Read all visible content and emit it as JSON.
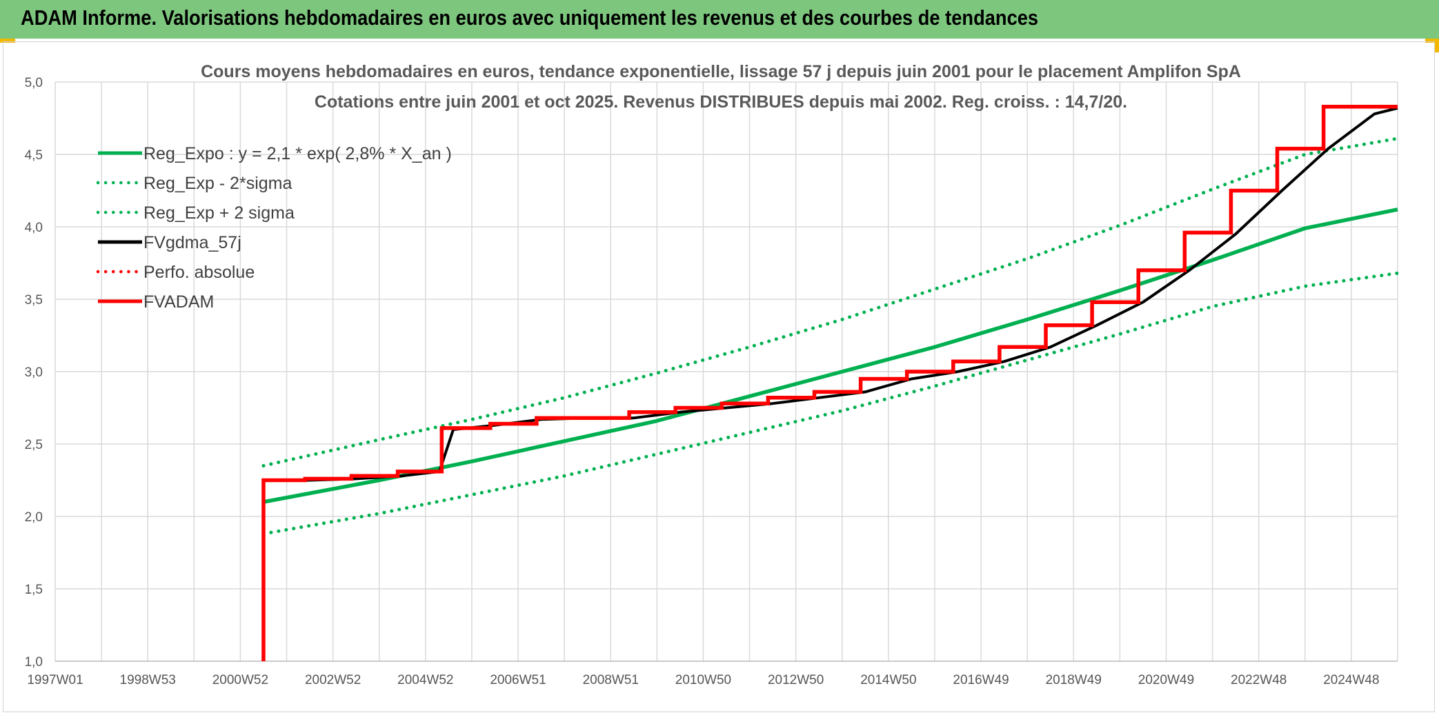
{
  "banner": {
    "title": "ADAM Informe. Valorisations hebdomadaires en euros avec uniquement les revenus et des courbes de tendances",
    "bg_color": "#7dc67e"
  },
  "chart_data": {
    "type": "line",
    "title_line1": "Cours moyens hebdomadaires en euros, tendance exponentielle, lissage 57 j depuis juin 2001 pour le placement Amplifon SpA",
    "title_line2": "Cotations entre juin 2001 et oct 2025. Revenus DISTRIBUES depuis mai 2002. Reg. croiss. : 14,7/20.",
    "ylim": [
      1.0,
      5.0
    ],
    "yticks": [
      "1,0",
      "1,5",
      "2,0",
      "2,5",
      "3,0",
      "3,5",
      "4,0",
      "4,5",
      "5,0"
    ],
    "xlim": [
      1997.0,
      2026.0
    ],
    "xticks": [
      {
        "label": "1997W01",
        "year": 1997.0
      },
      {
        "label": "1998W53",
        "year": 1999.0
      },
      {
        "label": "2000W52",
        "year": 2001.0
      },
      {
        "label": "2002W52",
        "year": 2003.0
      },
      {
        "label": "2004W52",
        "year": 2005.0
      },
      {
        "label": "2006W51",
        "year": 2007.0
      },
      {
        "label": "2008W51",
        "year": 2009.0
      },
      {
        "label": "2010W50",
        "year": 2011.0
      },
      {
        "label": "2012W50",
        "year": 2013.0
      },
      {
        "label": "2014W50",
        "year": 2015.0
      },
      {
        "label": "2016W49",
        "year": 2017.0
      },
      {
        "label": "2018W49",
        "year": 2019.0
      },
      {
        "label": "2020W49",
        "year": 2021.0
      },
      {
        "label": "2022W48",
        "year": 2023.0
      },
      {
        "label": "2024W48",
        "year": 2025.0
      }
    ],
    "grid": true,
    "legend_position": "top-left",
    "series": [
      {
        "name": "Reg_Expo : y = 2,1 * exp( 2,8% *  X_an )",
        "color": "#00b050",
        "style": "solid",
        "x": [
          2001.5,
          2004,
          2006,
          2008,
          2010,
          2012,
          2014,
          2016,
          2018,
          2020,
          2022,
          2024,
          2026
        ],
        "y": [
          2.1,
          2.25,
          2.38,
          2.52,
          2.66,
          2.83,
          3.0,
          3.17,
          3.36,
          3.56,
          3.77,
          3.99,
          4.12
        ]
      },
      {
        "name": "Reg_Exp - 2*sigma",
        "color": "#00b050",
        "style": "dotted",
        "x": [
          2001.5,
          2004,
          2006,
          2008,
          2010,
          2012,
          2014,
          2016,
          2018,
          2020,
          2022,
          2024,
          2026
        ],
        "y": [
          1.88,
          2.02,
          2.15,
          2.28,
          2.43,
          2.58,
          2.73,
          2.9,
          3.08,
          3.26,
          3.45,
          3.59,
          3.68
        ]
      },
      {
        "name": "Reg_Exp + 2 sigma",
        "color": "#00b050",
        "style": "dotted",
        "x": [
          2001.5,
          2004,
          2006,
          2008,
          2010,
          2012,
          2014,
          2016,
          2018,
          2020,
          2022,
          2024,
          2026
        ],
        "y": [
          2.35,
          2.53,
          2.67,
          2.82,
          2.99,
          3.17,
          3.36,
          3.57,
          3.78,
          4.01,
          4.26,
          4.5,
          4.61
        ]
      },
      {
        "name": "FVgdma_57j",
        "color": "#000000",
        "style": "solid",
        "x": [
          2001.5,
          2002.5,
          2003.5,
          2004.5,
          2005.3,
          2005.6,
          2006.5,
          2007.5,
          2008.5,
          2009.5,
          2010.5,
          2011.5,
          2012.5,
          2013.5,
          2014.5,
          2015.5,
          2016.5,
          2017.5,
          2018.5,
          2019.5,
          2020.5,
          2021.5,
          2022.5,
          2023.5,
          2024.5,
          2025.5,
          2026.0
        ],
        "y": [
          2.25,
          2.25,
          2.26,
          2.28,
          2.31,
          2.6,
          2.63,
          2.67,
          2.68,
          2.68,
          2.72,
          2.75,
          2.78,
          2.82,
          2.86,
          2.95,
          3.0,
          3.07,
          3.17,
          3.32,
          3.48,
          3.7,
          3.95,
          4.25,
          4.54,
          4.78,
          4.82
        ]
      },
      {
        "name": "Perfo. absolue",
        "color": "#ff0000",
        "style": "dotted",
        "x": [],
        "y": []
      },
      {
        "name": "FVADAM",
        "color": "#ff0000",
        "style": "step",
        "x": [
          2001.5,
          2001.5,
          2002.4,
          2003.4,
          2004.4,
          2005.35,
          2006.4,
          2007.4,
          2009.4,
          2010.4,
          2011.4,
          2012.4,
          2013.4,
          2014.4,
          2015.4,
          2016.4,
          2017.4,
          2018.4,
          2019.4,
          2020.4,
          2021.4,
          2022.4,
          2023.4,
          2024.4,
          2025.4,
          2026.0
        ],
        "y": [
          1.0,
          2.25,
          2.26,
          2.28,
          2.31,
          2.61,
          2.64,
          2.68,
          2.72,
          2.75,
          2.78,
          2.82,
          2.86,
          2.95,
          3.0,
          3.07,
          3.17,
          3.32,
          3.48,
          3.7,
          3.96,
          4.25,
          4.54,
          4.83,
          4.83,
          4.83
        ]
      }
    ]
  }
}
